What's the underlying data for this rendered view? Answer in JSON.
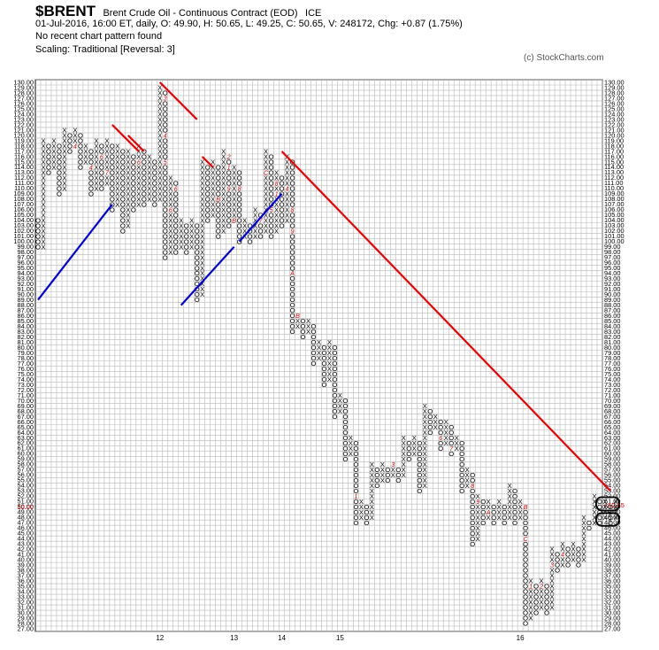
{
  "header": {
    "symbol": "$BRENT",
    "description": "Brent Crude Oil - Continuous Contract (EOD)",
    "exchange": "ICE",
    "quote_line": "01-Jul-2016, 16:00 ET, daily, O: 49.90, H: 50.65, L: 49.25, C: 50.65, V: 248172, Chg: +0.87 (1.75%)",
    "pattern_line": "No recent chart pattern found",
    "scaling_line": "Scaling: Traditional [Reversal: 3]",
    "copyright": "(c) StockCharts.com"
  },
  "chart_data": {
    "type": "point-and-figure",
    "title": "$BRENT Brent Crude Oil - Continuous Contract (EOD) ICE",
    "box_size": 1,
    "reversal": 3,
    "ylim": [
      27,
      130
    ],
    "last_price": 50.65,
    "last_price_label": "<50.65",
    "current_marker_label": "50.00",
    "year_labels": [
      {
        "label": "12",
        "column": 23
      },
      {
        "label": "13",
        "column": 37
      },
      {
        "label": "14",
        "column": 46
      },
      {
        "label": "15",
        "column": 57
      },
      {
        "label": "16",
        "column": 91
      }
    ],
    "columns": [
      [
        "O",
        99,
        104
      ],
      [
        "X",
        99,
        119
      ],
      [
        "O",
        113,
        118
      ],
      [
        "X",
        114,
        119
      ],
      [
        "O",
        109,
        118
      ],
      [
        "X",
        110,
        121
      ],
      [
        "O",
        117,
        120
      ],
      [
        "X",
        118,
        121
      ],
      [
        "O",
        114,
        120
      ],
      [
        "X",
        115,
        118
      ],
      [
        "O",
        109,
        117
      ],
      [
        "X",
        110,
        119
      ],
      [
        "O",
        110,
        118
      ],
      [
        "X",
        111,
        119
      ],
      [
        "O",
        106,
        118
      ],
      [
        "X",
        107,
        118
      ],
      [
        "O",
        102,
        117
      ],
      [
        "X",
        103,
        117
      ],
      [
        "O",
        106,
        116
      ],
      [
        "X",
        107,
        118
      ],
      [
        "O",
        107,
        117
      ],
      [
        "X",
        108,
        116
      ],
      [
        "O",
        107,
        115
      ],
      [
        "X",
        108,
        129
      ],
      [
        "O",
        97,
        128
      ],
      [
        "X",
        98,
        112
      ],
      [
        "O",
        98,
        111
      ],
      [
        "X",
        99,
        104
      ],
      [
        "O",
        98,
        103
      ],
      [
        "X",
        99,
        104
      ],
      [
        "O",
        89,
        103
      ],
      [
        "X",
        90,
        115
      ],
      [
        "O",
        104,
        114
      ],
      [
        "X",
        105,
        115
      ],
      [
        "O",
        101,
        114
      ],
      [
        "X",
        102,
        117
      ],
      [
        "O",
        103,
        116
      ],
      [
        "X",
        104,
        114
      ],
      [
        "O",
        100,
        113
      ],
      [
        "X",
        101,
        104
      ],
      [
        "O",
        100,
        103
      ],
      [
        "X",
        101,
        106
      ],
      [
        "O",
        101,
        105
      ],
      [
        "X",
        102,
        117
      ],
      [
        "O",
        101,
        116
      ],
      [
        "X",
        102,
        113
      ],
      [
        "O",
        103,
        112
      ],
      [
        "X",
        104,
        116
      ],
      [
        "O",
        83,
        115
      ],
      [
        "X",
        84,
        86
      ],
      [
        "O",
        82,
        85
      ],
      [
        "X",
        83,
        85
      ],
      [
        "O",
        77,
        84
      ],
      [
        "X",
        78,
        81
      ],
      [
        "O",
        73,
        80
      ],
      [
        "X",
        74,
        81
      ],
      [
        "O",
        67,
        80
      ],
      [
        "X",
        68,
        71
      ],
      [
        "O",
        59,
        70
      ],
      [
        "X",
        60,
        63
      ],
      [
        "O",
        47,
        62
      ],
      [
        "X",
        48,
        51
      ],
      [
        "O",
        47,
        50
      ],
      [
        "X",
        48,
        58
      ],
      [
        "O",
        54,
        57
      ],
      [
        "X",
        55,
        58
      ],
      [
        "O",
        55,
        57
      ],
      [
        "X",
        56,
        58
      ],
      [
        "O",
        55,
        57
      ],
      [
        "X",
        56,
        63
      ],
      [
        "O",
        59,
        62
      ],
      [
        "X",
        60,
        63
      ],
      [
        "O",
        53,
        62
      ],
      [
        "X",
        54,
        69
      ],
      [
        "O",
        64,
        68
      ],
      [
        "X",
        65,
        67
      ],
      [
        "O",
        61,
        66
      ],
      [
        "X",
        62,
        66
      ],
      [
        "O",
        60,
        65
      ],
      [
        "X",
        61,
        63
      ],
      [
        "O",
        53,
        62
      ],
      [
        "X",
        54,
        57
      ],
      [
        "O",
        43,
        56
      ],
      [
        "X",
        44,
        52
      ],
      [
        "O",
        47,
        51
      ],
      [
        "X",
        48,
        51
      ],
      [
        "O",
        47,
        50
      ],
      [
        "X",
        48,
        51
      ],
      [
        "O",
        47,
        50
      ],
      [
        "X",
        48,
        54
      ],
      [
        "O",
        47,
        53
      ],
      [
        "X",
        48,
        51
      ],
      [
        "O",
        28,
        50
      ],
      [
        "X",
        29,
        36
      ],
      [
        "O",
        30,
        35
      ],
      [
        "X",
        31,
        36
      ],
      [
        "O",
        30,
        35
      ],
      [
        "X",
        31,
        42
      ],
      [
        "O",
        38,
        41
      ],
      [
        "X",
        39,
        43
      ],
      [
        "O",
        39,
        42
      ],
      [
        "X",
        40,
        43
      ],
      [
        "O",
        39,
        42
      ],
      [
        "X",
        40,
        48
      ],
      [
        "O",
        46,
        47
      ],
      [
        "X",
        47,
        52
      ],
      [
        "O",
        47,
        51
      ],
      [
        "X",
        48,
        51
      ],
      [
        "O",
        47,
        50
      ],
      [
        "X",
        48,
        51
      ]
    ],
    "month_markers": [
      {
        "label": "4",
        "column": 7,
        "price": 118
      },
      {
        "label": "5",
        "column": 10,
        "price": 120
      },
      {
        "label": "3",
        "column": 6,
        "price": 113
      },
      {
        "label": "4",
        "column": 10,
        "price": 114
      },
      {
        "label": "6",
        "column": 12,
        "price": 116
      },
      {
        "label": "7",
        "column": 13,
        "price": 113
      },
      {
        "label": "8",
        "column": 14,
        "price": 119
      },
      {
        "label": "6",
        "column": 19,
        "price": 115
      },
      {
        "label": "A",
        "column": 20,
        "price": 106
      },
      {
        "label": "3",
        "column": 24,
        "price": 127
      },
      {
        "label": "4",
        "column": 24,
        "price": 120
      },
      {
        "label": "5",
        "column": 24,
        "price": 115
      },
      {
        "label": "6",
        "column": 25,
        "price": 106
      },
      {
        "label": "2",
        "column": 26,
        "price": 115
      },
      {
        "label": "1",
        "column": 27,
        "price": 113
      },
      {
        "label": "6",
        "column": 26,
        "price": 110
      },
      {
        "label": "7",
        "column": 27,
        "price": 105
      },
      {
        "label": "8",
        "column": 28,
        "price": 110
      },
      {
        "label": "2",
        "column": 36,
        "price": 116
      },
      {
        "label": "1",
        "column": 36,
        "price": 114
      },
      {
        "label": "B",
        "column": 34,
        "price": 108
      },
      {
        "label": "9",
        "column": 36,
        "price": 110
      },
      {
        "label": "8",
        "column": 38,
        "price": 110
      },
      {
        "label": "B",
        "column": 37,
        "price": 104
      },
      {
        "label": "4",
        "column": 40,
        "price": 108
      },
      {
        "label": "6",
        "column": 41,
        "price": 108
      },
      {
        "label": "5",
        "column": 42,
        "price": 112
      },
      {
        "label": "7",
        "column": 42,
        "price": 104
      },
      {
        "label": "9",
        "column": 42,
        "price": 114
      },
      {
        "label": "C",
        "column": 43,
        "price": 113
      },
      {
        "label": "8",
        "column": 45,
        "price": 111
      },
      {
        "label": "1",
        "column": 45,
        "price": 109
      },
      {
        "label": "4",
        "column": 47,
        "price": 110
      },
      {
        "label": "5",
        "column": 44,
        "price": 106
      },
      {
        "label": "6",
        "column": 46,
        "price": 114
      },
      {
        "label": "7",
        "column": 46,
        "price": 113
      },
      {
        "label": "8",
        "column": 48,
        "price": 106
      },
      {
        "label": "9",
        "column": 48,
        "price": 102
      },
      {
        "label": "A",
        "column": 48,
        "price": 94
      },
      {
        "label": "B",
        "column": 49,
        "price": 86
      },
      {
        "label": "1",
        "column": 60,
        "price": 52
      },
      {
        "label": "2",
        "column": 61,
        "price": 54
      },
      {
        "label": "3",
        "column": 67,
        "price": 58
      },
      {
        "label": "4",
        "column": 69,
        "price": 55
      },
      {
        "label": "5",
        "column": 72,
        "price": 67
      },
      {
        "label": "6",
        "column": 76,
        "price": 63
      },
      {
        "label": "7",
        "column": 78,
        "price": 61
      },
      {
        "label": "8",
        "column": 82,
        "price": 54
      },
      {
        "label": "9",
        "column": 83,
        "price": 51
      },
      {
        "label": "A",
        "column": 85,
        "price": 49
      },
      {
        "label": "B",
        "column": 92,
        "price": 50
      },
      {
        "label": "C",
        "column": 92,
        "price": 44
      },
      {
        "label": "1",
        "column": 93,
        "price": 35
      },
      {
        "label": "2",
        "column": 95,
        "price": 35
      },
      {
        "label": "3",
        "column": 97,
        "price": 39
      },
      {
        "label": "4",
        "column": 99,
        "price": 41
      },
      {
        "label": "5",
        "column": 101,
        "price": 47
      },
      {
        "label": "6",
        "column": 104,
        "price": 51
      }
    ],
    "trendlines": [
      {
        "kind": "support",
        "color": "#0000dd",
        "from": [
          0,
          89
        ],
        "to": [
          14,
          107
        ]
      },
      {
        "kind": "support",
        "color": "#0000dd",
        "from": [
          27,
          88
        ],
        "to": [
          37,
          99
        ]
      },
      {
        "kind": "support",
        "color": "#0000dd",
        "from": [
          38,
          100
        ],
        "to": [
          46,
          109
        ]
      },
      {
        "kind": "resistance",
        "color": "#ee0000",
        "from": [
          14,
          122
        ],
        "to": [
          19,
          117
        ]
      },
      {
        "kind": "resistance",
        "color": "#ee0000",
        "from": [
          17,
          120
        ],
        "to": [
          20,
          117
        ]
      },
      {
        "kind": "resistance",
        "color": "#ee0000",
        "from": [
          23,
          130
        ],
        "to": [
          30,
          123
        ]
      },
      {
        "kind": "resistance",
        "color": "#ee0000",
        "from": [
          31,
          116
        ],
        "to": [
          33,
          114
        ]
      },
      {
        "kind": "resistance",
        "color": "#ee0000",
        "from": [
          46,
          117
        ],
        "to": [
          108,
          53
        ]
      }
    ],
    "highlight_boxes": [
      {
        "from_column": 106,
        "to_column": 109,
        "y_range": [
          51.8,
          49.3
        ]
      },
      {
        "from_column": 106,
        "to_column": 109,
        "y_range": [
          48.8,
          46.4
        ]
      }
    ]
  }
}
